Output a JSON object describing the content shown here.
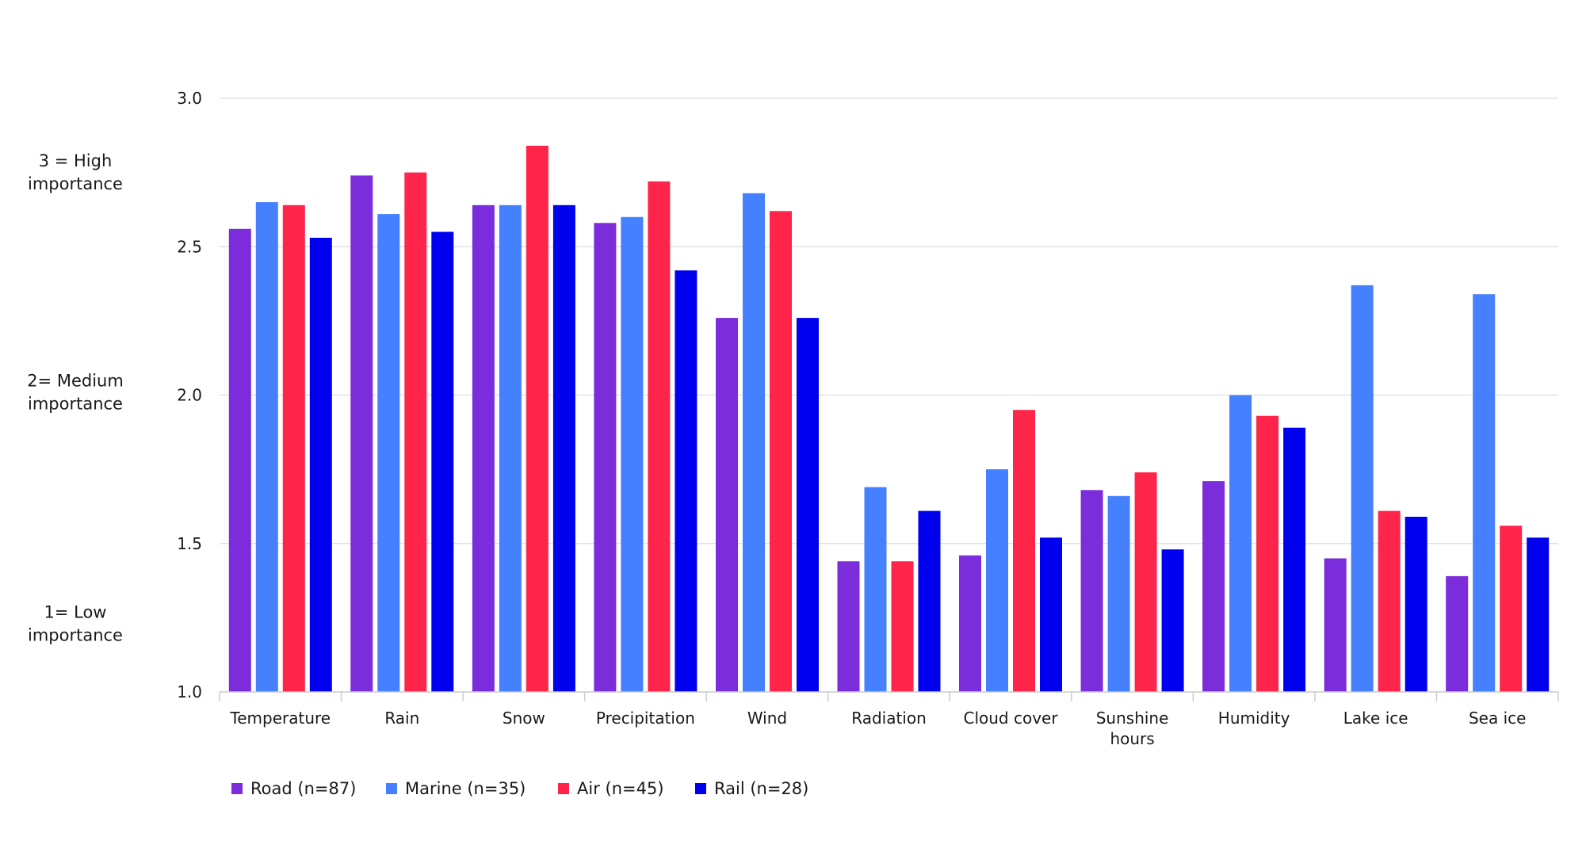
{
  "chart_data": {
    "type": "bar",
    "title": "",
    "xlabel": "",
    "ylabel": "",
    "ylim": [
      1.0,
      3.0
    ],
    "yticks": [
      "1.0",
      "1.5",
      "2.0",
      "2.5",
      "3.0"
    ],
    "grid": true,
    "legend_position": "bottom-left",
    "importance_labels": [
      {
        "value": 2.77,
        "lines": [
          "3 = High",
          "importance"
        ]
      },
      {
        "value": 2.03,
        "lines": [
          "2= Medium",
          "importance"
        ]
      },
      {
        "value": 1.25,
        "lines": [
          "1= Low",
          "importance"
        ]
      }
    ],
    "categories": [
      [
        "Temperature"
      ],
      [
        "Rain"
      ],
      [
        "Snow"
      ],
      [
        "Precipitation"
      ],
      [
        "Wind"
      ],
      [
        "Radiation"
      ],
      [
        "Cloud cover"
      ],
      [
        "Sunshine",
        "hours"
      ],
      [
        "Humidity"
      ],
      [
        "Lake ice"
      ],
      [
        "Sea ice"
      ]
    ],
    "series": [
      {
        "name": "Road (n=87)",
        "color": "#7b2ddb",
        "values": [
          2.56,
          2.74,
          2.64,
          2.58,
          2.26,
          1.44,
          1.46,
          1.68,
          1.71,
          1.45,
          1.39
        ]
      },
      {
        "name": "Marine (n=35)",
        "color": "#4480ff",
        "values": [
          2.65,
          2.61,
          2.64,
          2.6,
          2.68,
          1.69,
          1.75,
          1.66,
          2.0,
          2.37,
          2.34
        ]
      },
      {
        "name": "Air (n=45)",
        "color": "#ff2449",
        "values": [
          2.64,
          2.75,
          2.84,
          2.72,
          2.62,
          1.44,
          1.95,
          1.74,
          1.93,
          1.61,
          1.56
        ]
      },
      {
        "name": "Rail (n=28)",
        "color": "#0000ee",
        "values": [
          2.53,
          2.55,
          2.64,
          2.42,
          2.26,
          1.61,
          1.52,
          1.48,
          1.89,
          1.59,
          1.52
        ]
      }
    ]
  }
}
